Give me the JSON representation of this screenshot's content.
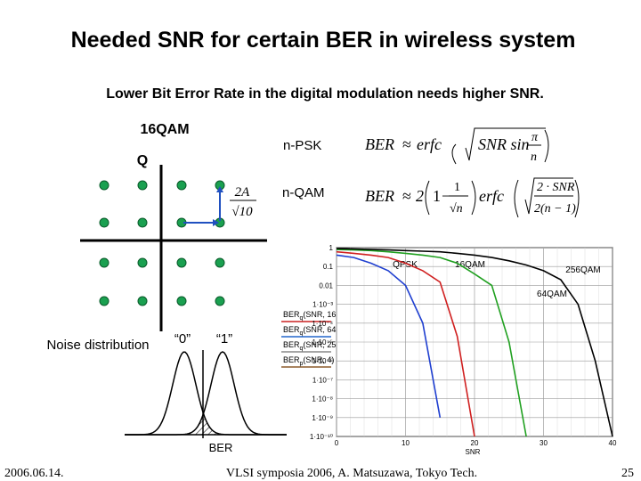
{
  "title": "Needed SNR for certain BER in wireless system",
  "subtitle": "Lower Bit Error Rate in the digital modulation needs higher SNR.",
  "constellation": {
    "label": "16QAM",
    "axis": "Q",
    "spacing": {
      "num": "2A",
      "den": "√10"
    }
  },
  "formulas": {
    "psk": {
      "name": "n-PSK",
      "lhs": "BER",
      "op": "≈",
      "fn": "erfc",
      "arg": "SNR sin",
      "num": "π",
      "den": "n"
    },
    "qam": {
      "name": "n-QAM",
      "lhs": "BER",
      "op": "≈",
      "coef": "2",
      "one": "1",
      "minus": "−",
      "num1": "1",
      "den1": "√n",
      "fn": "erfc",
      "num2": "2 · SNR",
      "den2": "2(n − 1)"
    }
  },
  "noise": {
    "label": "Noise distribution",
    "zero": "“0”",
    "one": "“1”",
    "ber": "BER"
  },
  "legend": [
    {
      "main": "BER",
      "sub": "q",
      "args": "(SNR, 16)",
      "color": "#cc2222"
    },
    {
      "main": "BER",
      "sub": "q",
      "args": "(SNR, 64)",
      "color": "#2266cc"
    },
    {
      "main": "BER",
      "sub": "q",
      "args": "(SNR, 256)",
      "color": "#888888"
    },
    {
      "main": "BER",
      "sub": "p",
      "args": "(SNR, 4)",
      "color": "#8b5a2b"
    }
  ],
  "chart_data": {
    "type": "line",
    "x_label": "SNR",
    "x": [
      0,
      2.5,
      5,
      7.5,
      10,
      12.5,
      15,
      17.5,
      20,
      22.5,
      25,
      27.5,
      30,
      32.5,
      35,
      37.5,
      40
    ],
    "series": [
      {
        "name": "QPSK",
        "color": "#1f3fd0",
        "values": [
          0.4,
          0.3,
          0.15,
          0.06,
          0.01,
          0.0001,
          1e-09,
          null,
          null,
          null,
          null,
          null,
          null,
          null,
          null,
          null,
          null
        ]
      },
      {
        "name": "16QAM",
        "color": "#d02020",
        "values": [
          0.6,
          0.5,
          0.4,
          0.3,
          0.15,
          0.06,
          0.015,
          2e-05,
          1e-10,
          null,
          null,
          null,
          null,
          null,
          null,
          null,
          null
        ]
      },
      {
        "name": "64QAM",
        "color": "#20a020",
        "values": [
          0.8,
          0.75,
          0.7,
          0.6,
          0.5,
          0.4,
          0.3,
          0.15,
          0.04,
          0.01,
          1e-05,
          1e-10,
          null,
          null,
          null,
          null,
          null
        ]
      },
      {
        "name": "256QAM",
        "color": "#000000",
        "values": [
          0.9,
          0.85,
          0.8,
          0.75,
          0.7,
          0.65,
          0.6,
          0.5,
          0.4,
          0.3,
          0.2,
          0.12,
          0.06,
          0.02,
          0.001,
          1e-06,
          1e-10
        ]
      }
    ],
    "xlim": [
      0,
      40
    ],
    "xticks": [
      0,
      10,
      20,
      30,
      40
    ],
    "ylim": [
      1e-10,
      1
    ],
    "yscale": "log",
    "yticks": [
      1,
      0.1,
      0.01,
      {
        "value": 0.001,
        "label": "1·10⁻³"
      },
      {
        "value": 0.0001,
        "label": "1·10⁻⁴"
      },
      {
        "value": 1e-05,
        "label": "1·10⁻⁵"
      },
      {
        "value": 1e-06,
        "label": "1·10⁻⁶"
      },
      {
        "value": 1e-07,
        "label": "1·10⁻⁷"
      },
      {
        "value": 1e-08,
        "label": "1·10⁻⁸"
      },
      {
        "value": 1e-09,
        "label": "1·10⁻⁹"
      },
      {
        "value": 1e-10,
        "label": "1·10⁻¹⁰"
      }
    ],
    "grid": true
  },
  "footer": {
    "date": "2006.06.14.",
    "venue": "VLSI symposia 2006, A. Matsuzawa, Tokyo Tech.",
    "page": "25"
  }
}
